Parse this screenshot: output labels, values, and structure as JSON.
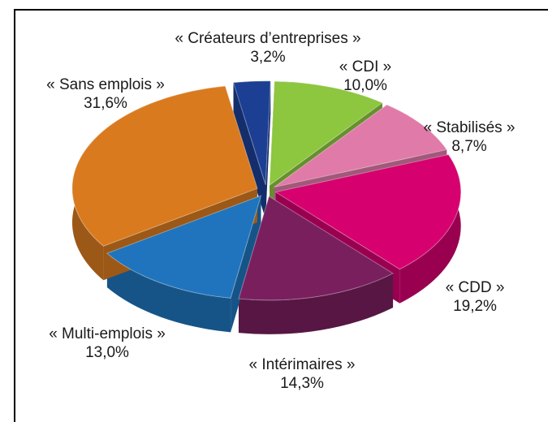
{
  "chart_data": {
    "type": "pie",
    "categories": [
      "« Créateurs d’entreprises »",
      "« CDI »",
      "« Stabilisés »",
      "« CDD »",
      "« Intérimaires »",
      "« Multi-emplois »",
      "« Sans emplois »"
    ],
    "values": [
      3.2,
      10.0,
      8.7,
      19.2,
      14.3,
      13.0,
      31.6
    ],
    "value_labels": [
      "3,2%",
      "10,0%",
      "8,7%",
      "19,2%",
      "14,3%",
      "13,0%",
      "31,6%"
    ],
    "colors": [
      "#1c3f94",
      "#8dc63f",
      "#e07aa8",
      "#d6006f",
      "#7a1f5e",
      "#1f74bd",
      "#d97a1f"
    ]
  }
}
